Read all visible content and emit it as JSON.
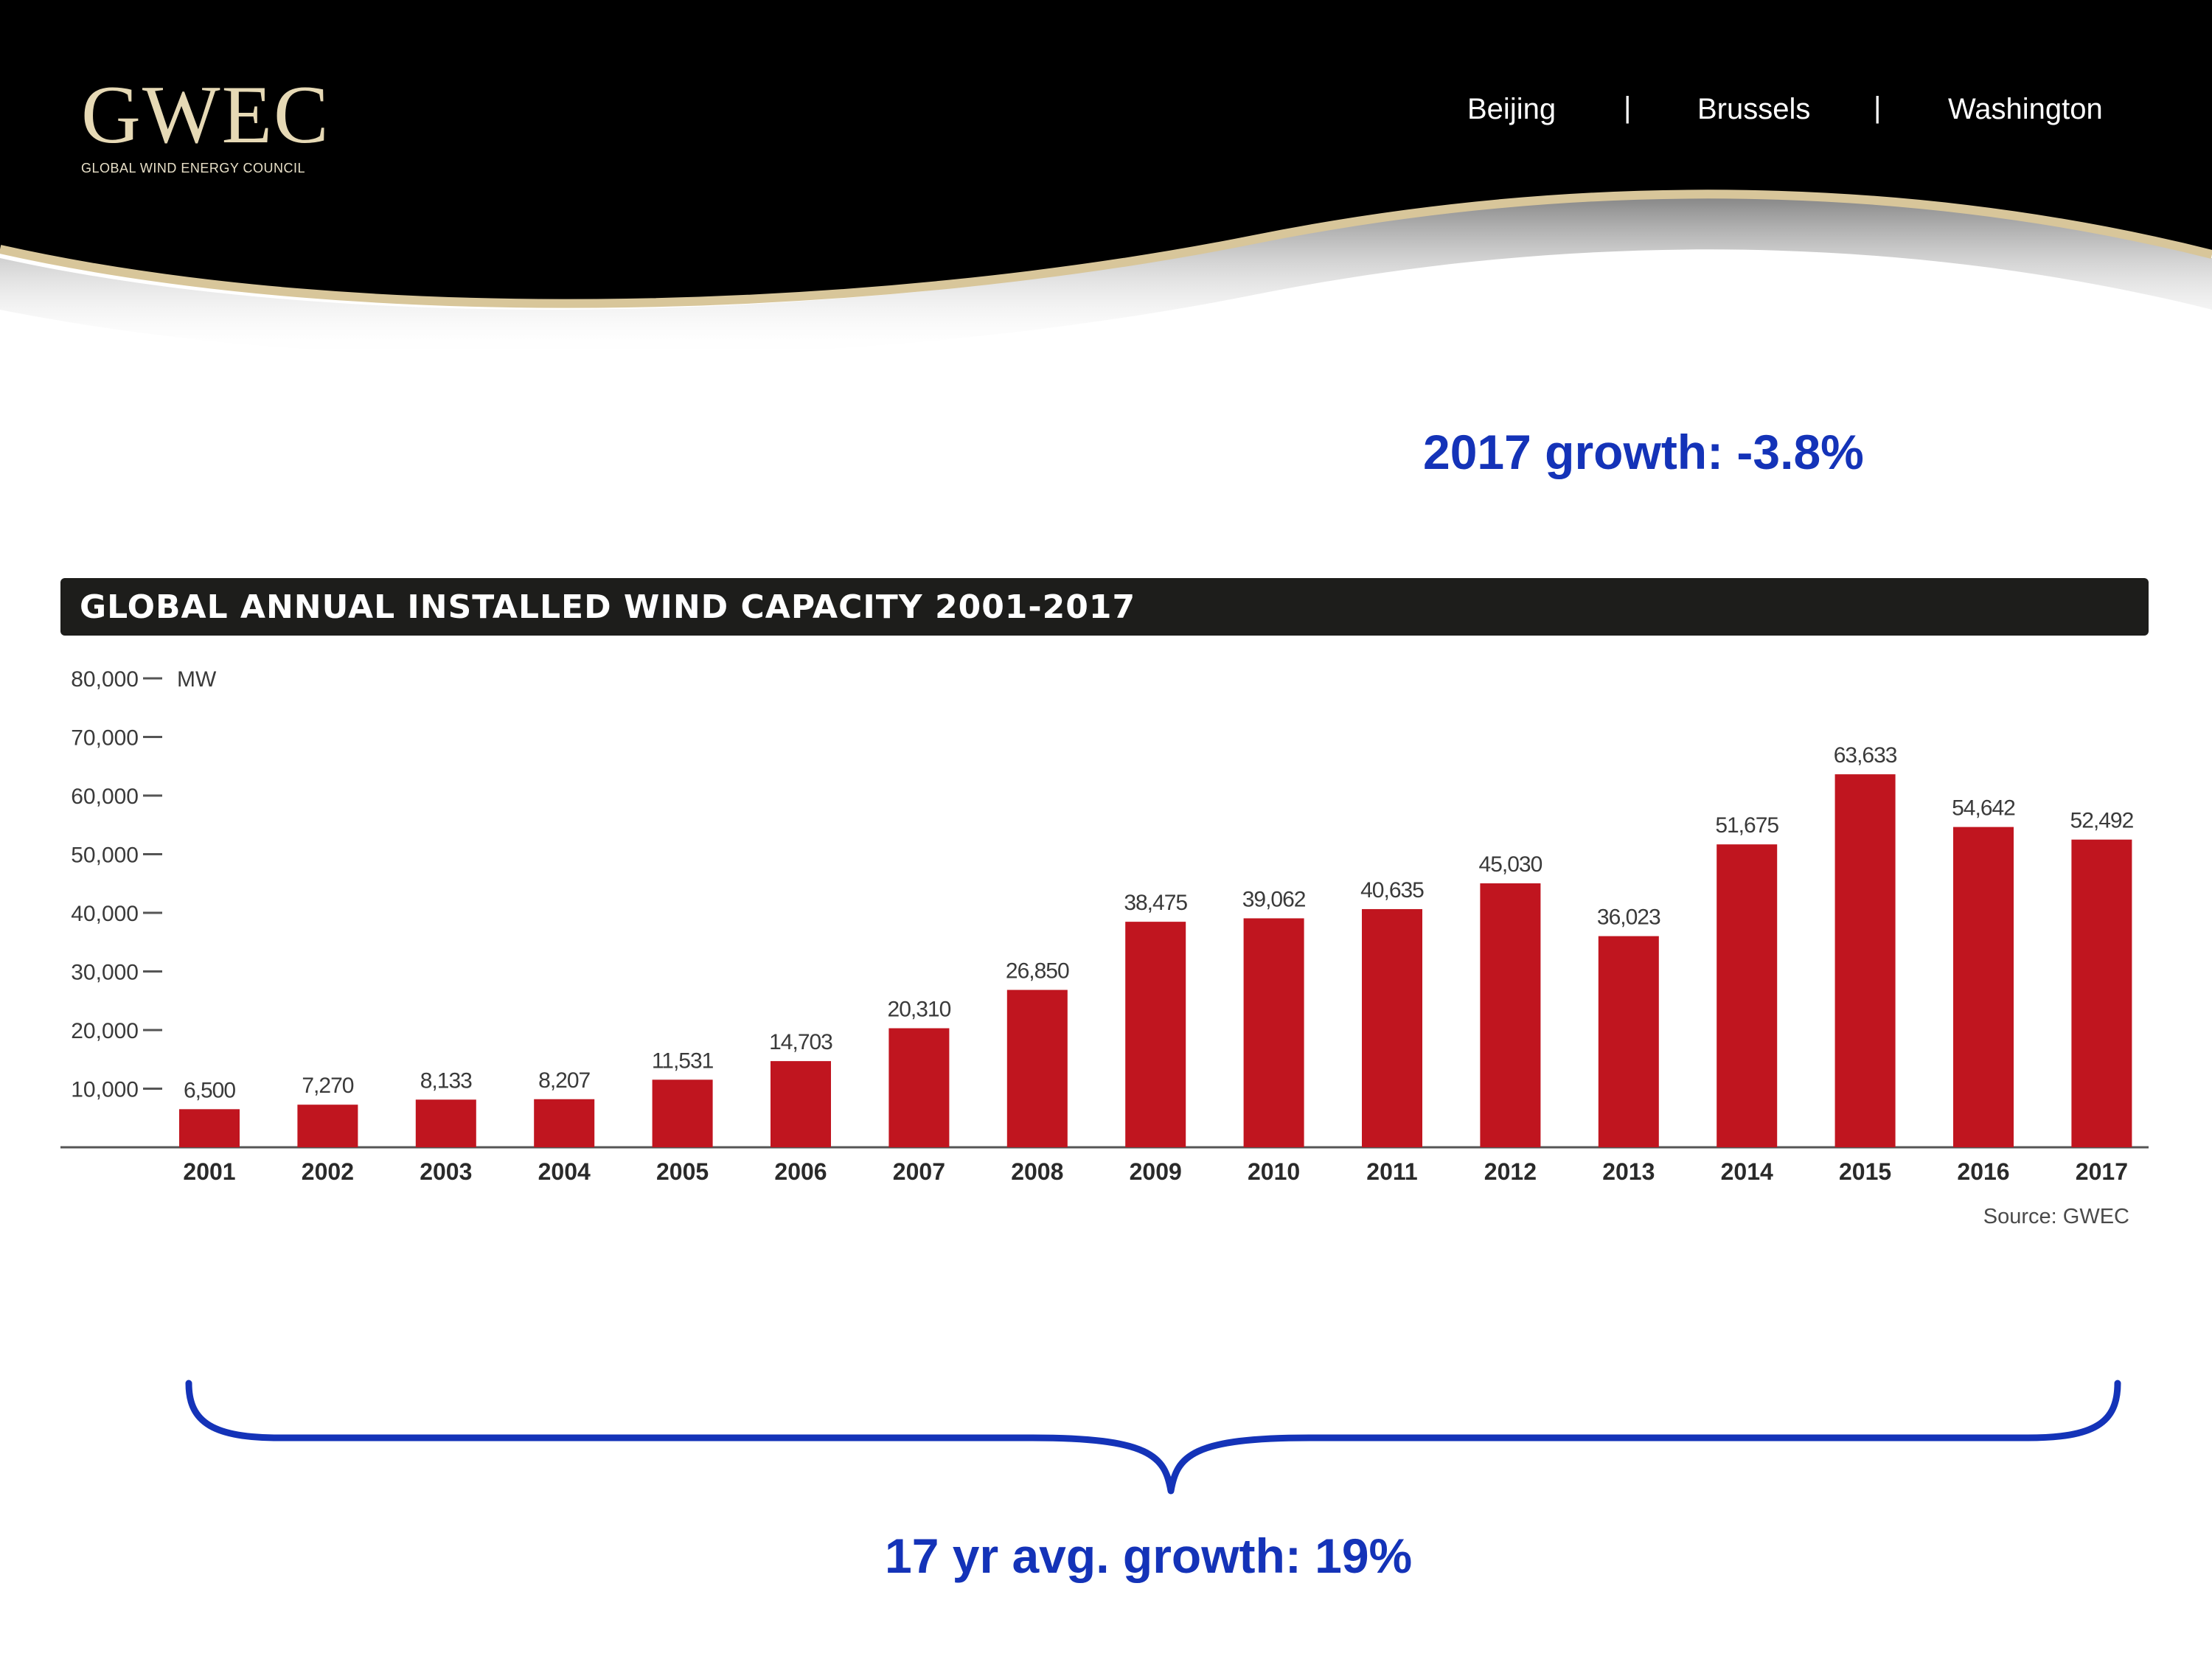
{
  "header": {
    "logo_text": "GWEC",
    "logo_subtitle": "GLOBAL WIND ENERGY COUNCIL",
    "cities": [
      "Beijing",
      "Brussels",
      "Washington"
    ],
    "separator": "|",
    "colors": {
      "background": "#000000",
      "accent": "#d8c69a"
    }
  },
  "annotations": {
    "growth_2017": "2017 growth: -3.8%",
    "avg_growth": "17 yr avg. growth: 19%",
    "color": "#1433b8"
  },
  "chart_data": {
    "type": "bar",
    "title": "GLOBAL ANNUAL INSTALLED WIND CAPACITY 2001-2017",
    "ylabel": "MW",
    "xlabel": "",
    "ylim": [
      0,
      80000
    ],
    "yticks": [
      10000,
      20000,
      30000,
      40000,
      50000,
      60000,
      70000,
      80000
    ],
    "ytick_labels": [
      "10,000",
      "20,000",
      "30,000",
      "40,000",
      "50,000",
      "60,000",
      "70,000",
      "80,000"
    ],
    "categories": [
      "2001",
      "2002",
      "2003",
      "2004",
      "2005",
      "2006",
      "2007",
      "2008",
      "2009",
      "2010",
      "2011",
      "2012",
      "2013",
      "2014",
      "2015",
      "2016",
      "2017"
    ],
    "values": [
      6500,
      7270,
      8133,
      8207,
      11531,
      14703,
      20310,
      26850,
      38475,
      39062,
      40635,
      45030,
      36023,
      51675,
      63633,
      54642,
      52492
    ],
    "value_labels": [
      "6,500",
      "7,270",
      "8,133",
      "8,207",
      "11,531",
      "14,703",
      "20,310",
      "26,850",
      "38,475",
      "39,062",
      "40,635",
      "45,030",
      "36,023",
      "51,675",
      "63,633",
      "54,642",
      "52,492"
    ],
    "bar_color": "#c0151f",
    "grid": false,
    "source": "Source: GWEC"
  }
}
